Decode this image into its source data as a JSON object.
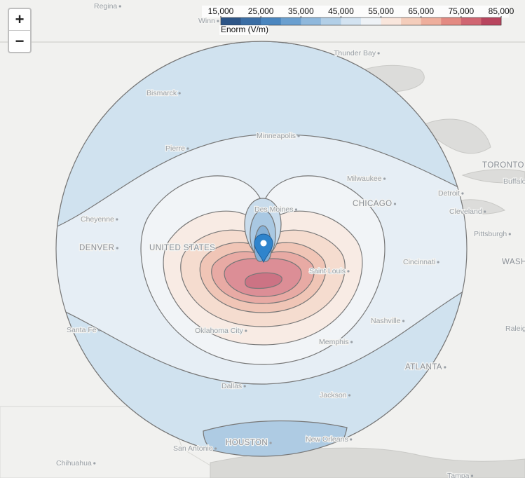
{
  "zoom_controls": {
    "zoom_in": "+",
    "zoom_out": "−"
  },
  "legend": {
    "title": "Enorm (V/m)",
    "ticks": [
      {
        "value": 15000,
        "label": "15,000"
      },
      {
        "value": 25000,
        "label": "25,000"
      },
      {
        "value": 35000,
        "label": "35,000"
      },
      {
        "value": 45000,
        "label": "45,000"
      },
      {
        "value": 55000,
        "label": "55,000"
      },
      {
        "value": 65000,
        "label": "65,000"
      },
      {
        "value": 75000,
        "label": "75,000"
      },
      {
        "value": 85000,
        "label": "85,000"
      }
    ],
    "colors": [
      "#2d5587",
      "#3b6ea5",
      "#4a86bf",
      "#6a9fcf",
      "#8fb8dc",
      "#b2cfe7",
      "#d3e3f1",
      "#eef2f6",
      "#f9e6dc",
      "#f4cdbb",
      "#eeae9c",
      "#e38a82",
      "#d06672",
      "#b8455e"
    ]
  },
  "places": [
    "Regina",
    "Winn",
    "Thunder Bay",
    "Bismarck",
    "Pierre",
    "Minneapolis",
    "TORONTO",
    "Buffalo",
    "Detroit",
    "Cleveland",
    "Pittsburgh",
    "Milwaukee",
    "CHICAGO",
    "Des Moines",
    "Cheyenne",
    "DENVER",
    "UNITED STATES",
    "Cincinnati",
    "WASH",
    "Saint Louis",
    "Santa Fe",
    "Oklahoma City",
    "Nashville",
    "Memphis",
    "Raleig",
    "ATLANTA",
    "Dallas",
    "Jackson",
    "HOUSTON",
    "San Antonio",
    "New Orleans",
    "Chihuahua",
    "Tampa"
  ]
}
